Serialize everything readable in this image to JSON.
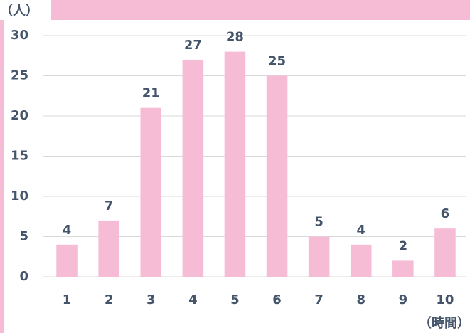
{
  "chart_data": {
    "type": "bar",
    "y_axis_label": "（人）",
    "x_axis_label": "（時間）",
    "categories": [
      "1",
      "2",
      "3",
      "4",
      "5",
      "6",
      "7",
      "8",
      "9",
      "10"
    ],
    "values": [
      4,
      7,
      21,
      27,
      28,
      25,
      5,
      4,
      2,
      6
    ],
    "color": "#f7bcd5",
    "ylim": [
      0,
      30
    ],
    "yticks": [
      0,
      5,
      10,
      15,
      20,
      25,
      30
    ],
    "grid": true
  }
}
